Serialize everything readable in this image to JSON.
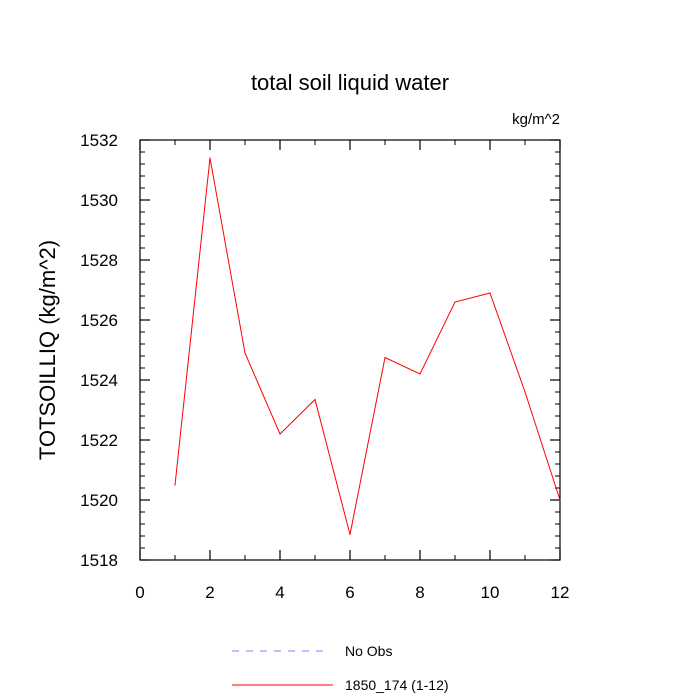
{
  "chart_data": {
    "type": "line",
    "title": "total soil liquid water",
    "units": "kg/m^2",
    "xlabel": "",
    "ylabel": "TOTSOILLIQ  (kg/m^2)",
    "xlim": [
      0,
      12
    ],
    "ylim": [
      1518,
      1532
    ],
    "xticks": [
      0,
      2,
      4,
      6,
      8,
      10,
      12
    ],
    "yticks": [
      1518,
      1520,
      1522,
      1524,
      1526,
      1528,
      1530,
      1532
    ],
    "grid": false,
    "legend_position": "bottom",
    "series": [
      {
        "name": "1850_174 (1-12)",
        "color": "#ff0000",
        "style": "solid",
        "x": [
          1,
          2,
          3,
          4,
          5,
          6,
          7,
          8,
          9,
          10,
          11,
          12
        ],
        "y": [
          1520.5,
          1531.4,
          1524.9,
          1522.2,
          1523.35,
          1518.85,
          1524.75,
          1524.2,
          1526.6,
          1526.9,
          1523.6,
          1520.0
        ]
      }
    ],
    "legend": [
      {
        "label": "No Obs",
        "color": "#8080ff",
        "style": "dashed"
      },
      {
        "label": "1850_174 (1-12)",
        "color": "#ff0000",
        "style": "solid"
      }
    ]
  }
}
